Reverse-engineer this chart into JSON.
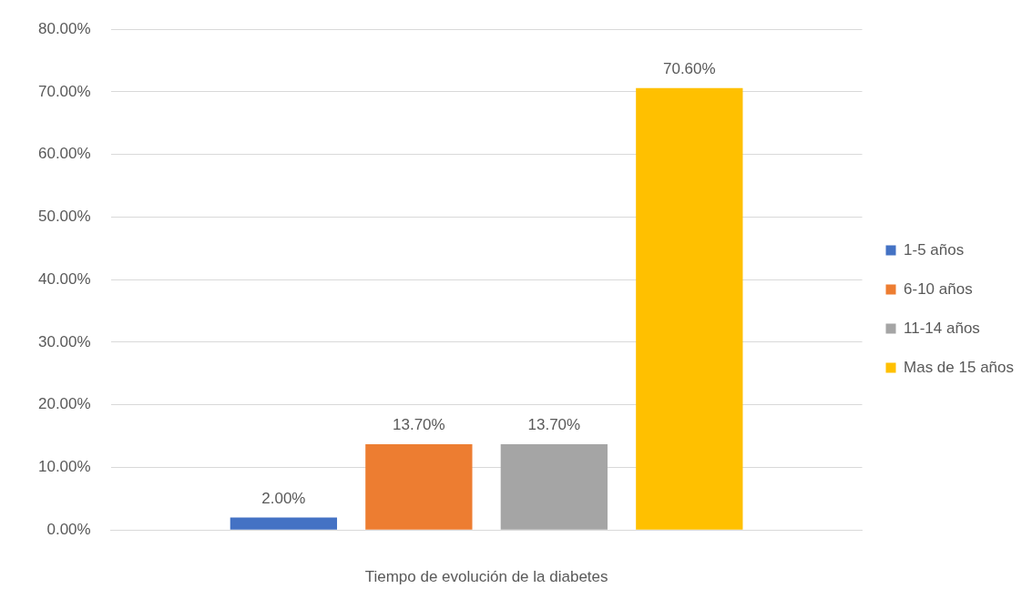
{
  "chart_data": {
    "type": "bar",
    "xlabel": "Tiempo de evolución de la diabetes",
    "categories": [
      null
    ],
    "series": [
      {
        "name": "1-5 años",
        "color": "#4472c4",
        "values": [
          2
        ],
        "value_labels": [
          "2.00%"
        ]
      },
      {
        "name": "6-10 años",
        "color": "#ed7d31",
        "values": [
          13.7
        ],
        "value_labels": [
          "13.70%"
        ]
      },
      {
        "name": "11-14 años",
        "color": "#a5a5a5",
        "values": [
          13.7
        ],
        "value_labels": [
          "13.70%"
        ]
      },
      {
        "name": "Mas de 15 años",
        "color": "#ffc000",
        "values": [
          70.6
        ],
        "value_labels": [
          "70.60%"
        ]
      }
    ],
    "ylim": [
      0,
      80
    ],
    "yticks": [
      {
        "value": 0,
        "label": "0.00%"
      },
      {
        "value": 10,
        "label": "10.00%"
      },
      {
        "value": 20,
        "label": "20.00%"
      },
      {
        "value": 30,
        "label": "30.00%"
      },
      {
        "value": 40,
        "label": "40.00%"
      },
      {
        "value": 50,
        "label": "50.00%"
      },
      {
        "value": 60,
        "label": "60.00%"
      },
      {
        "value": 70,
        "label": "70.00%"
      },
      {
        "value": 80,
        "label": "80.00%"
      }
    ],
    "grid": "y",
    "legend": "right"
  }
}
